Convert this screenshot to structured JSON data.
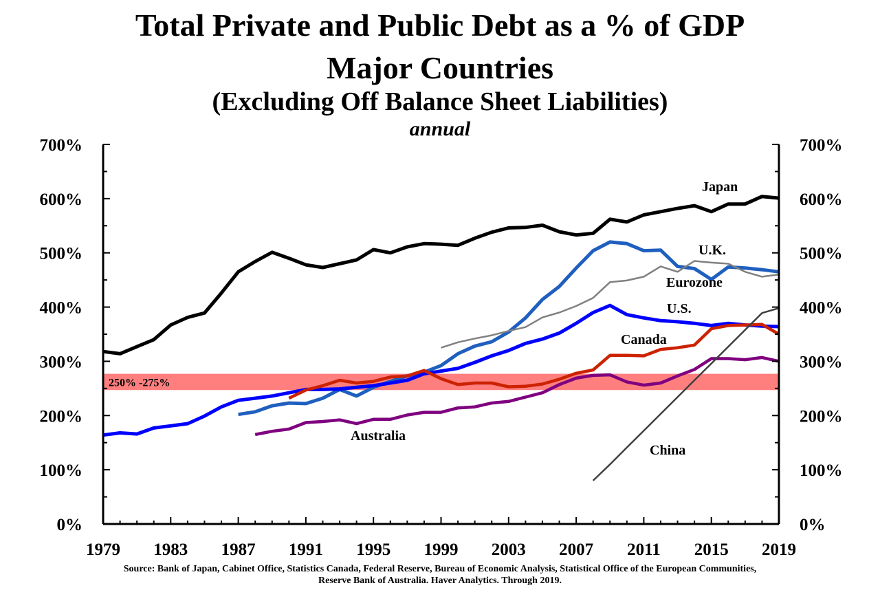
{
  "chart_data": {
    "type": "line",
    "title": "Total Private and Public Debt as a % of GDP",
    "subtitle": "Major Countries",
    "subtitle2": "(Excluding Off Balance Sheet Liabilities)",
    "frequency_label": "annual",
    "xlim": [
      1979,
      2019
    ],
    "ylim": [
      0,
      700
    ],
    "x_ticks": [
      "1979",
      "1983",
      "1987",
      "1991",
      "1995",
      "1999",
      "2003",
      "2007",
      "2011",
      "2015",
      "2019"
    ],
    "y_ticks_left": [
      "0%",
      "100%",
      "200%",
      "300%",
      "400%",
      "500%",
      "600%",
      "700%"
    ],
    "y_ticks_right": [
      "0%",
      "100%",
      "200%",
      "300%",
      "400%",
      "500%",
      "600%",
      "700%"
    ],
    "band": {
      "from": 247,
      "to": 277,
      "label": "250% -275%",
      "color": "#ff7f7f"
    },
    "series": [
      {
        "name": "Japan",
        "color": "#000000",
        "start": 1979,
        "values": [
          318,
          314,
          327,
          340,
          367,
          381,
          389,
          426,
          465,
          484,
          501,
          490,
          478,
          473,
          480,
          487,
          506,
          500,
          511,
          517,
          516,
          514,
          527,
          538,
          546,
          547,
          551,
          539,
          533,
          536,
          562,
          557,
          570,
          576,
          582,
          587,
          576,
          590,
          590,
          604,
          601
        ]
      },
      {
        "name": "U.K.",
        "color": "#1f5fbf",
        "start": 1987,
        "values": [
          202,
          207,
          218,
          223,
          222,
          232,
          248,
          236,
          252,
          263,
          273,
          280,
          292,
          314,
          328,
          336,
          354,
          380,
          414,
          438,
          472,
          504,
          520,
          517,
          504,
          505,
          475,
          471,
          451,
          474,
          472,
          469,
          465
        ]
      },
      {
        "name": "Eurozone",
        "color": "#808080",
        "start": 1999,
        "values": [
          325,
          335,
          342,
          348,
          356,
          363,
          381,
          390,
          402,
          417,
          446,
          449,
          456,
          475,
          465,
          485,
          482,
          480,
          465,
          456,
          460
        ]
      },
      {
        "name": "U.S.",
        "color": "#0000ff",
        "start": 1979,
        "values": [
          164,
          168,
          166,
          177,
          181,
          185,
          199,
          216,
          228,
          232,
          236,
          242,
          248,
          248,
          249,
          252,
          255,
          260,
          265,
          277,
          282,
          287,
          298,
          310,
          320,
          333,
          341,
          352,
          370,
          390,
          403,
          386,
          380,
          375,
          373,
          370,
          366,
          370,
          367,
          365,
          364
        ]
      },
      {
        "name": "Canada",
        "color": "#cc2200",
        "start": 1990,
        "values": [
          232,
          247,
          255,
          265,
          260,
          263,
          271,
          273,
          283,
          268,
          257,
          260,
          260,
          253,
          254,
          258,
          267,
          278,
          284,
          311,
          311,
          310,
          322,
          325,
          330,
          360,
          366,
          367,
          368,
          350
        ]
      },
      {
        "name": "Australia",
        "color": "#7f007f",
        "start": 1988,
        "values": [
          165,
          171,
          175,
          187,
          189,
          192,
          185,
          193,
          193,
          201,
          206,
          206,
          214,
          216,
          223,
          226,
          234,
          242,
          257,
          269,
          274,
          275,
          262,
          256,
          260,
          273,
          285,
          305,
          305,
          303,
          307,
          300
        ]
      },
      {
        "name": "China",
        "color": "#404040",
        "start": 2008,
        "values": [
          80,
          110,
          141,
          172,
          203,
          234,
          265,
          296,
          327,
          358,
          389,
          398
        ]
      }
    ],
    "series_labels": [
      "Japan",
      "U.K.",
      "Eurozone",
      "U.S.",
      "Canada",
      "Australia",
      "China"
    ],
    "grid": false,
    "legend": "inline labels"
  },
  "source_line1": "Source: Bank of Japan, Cabinet Office, Statistics Canada, Federal Reserve, Bureau of Economic Analysis, Statistical Office of the European Communities,",
  "source_line2": "Reserve Bank of Australia. Haver Analytics. Through 2019."
}
